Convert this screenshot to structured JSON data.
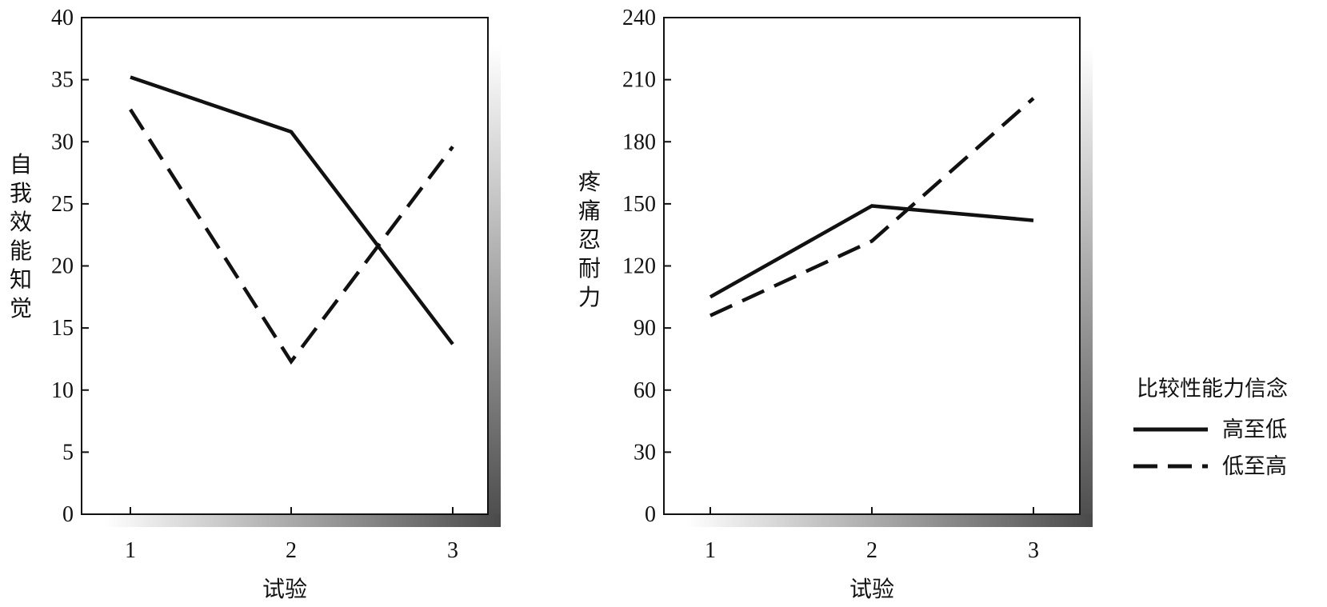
{
  "chart_data": [
    {
      "type": "line",
      "title": "",
      "xlabel": "试验",
      "ylabel": "自我效能知觉",
      "categories": [
        "1",
        "2",
        "3"
      ],
      "ylim": [
        0,
        40
      ],
      "yticks": [
        "0",
        "5",
        "10",
        "15",
        "20",
        "25",
        "30",
        "35",
        "40"
      ],
      "grid": false,
      "series": [
        {
          "name": "高至低",
          "style": "solid",
          "values": [
            35.2,
            30.8,
            13.7
          ]
        },
        {
          "name": "低至高",
          "style": "dashed",
          "values": [
            32.6,
            12.3,
            29.6
          ]
        }
      ]
    },
    {
      "type": "line",
      "title": "",
      "xlabel": "试验",
      "ylabel": "疼痛忍耐力",
      "categories": [
        "1",
        "2",
        "3"
      ],
      "ylim": [
        0,
        240
      ],
      "yticks": [
        "0",
        "30",
        "60",
        "90",
        "120",
        "150",
        "180",
        "210",
        "240"
      ],
      "grid": false,
      "series": [
        {
          "name": "高至低",
          "style": "solid",
          "values": [
            105,
            149,
            142
          ]
        },
        {
          "name": "低至高",
          "style": "dashed",
          "values": [
            96,
            132,
            201
          ]
        }
      ]
    }
  ],
  "legend": {
    "title": "比较性能力信念",
    "items": [
      "高至低",
      "低至高"
    ],
    "placement": "right"
  },
  "colors": {
    "line": "#111111",
    "shadow": "#555555"
  }
}
